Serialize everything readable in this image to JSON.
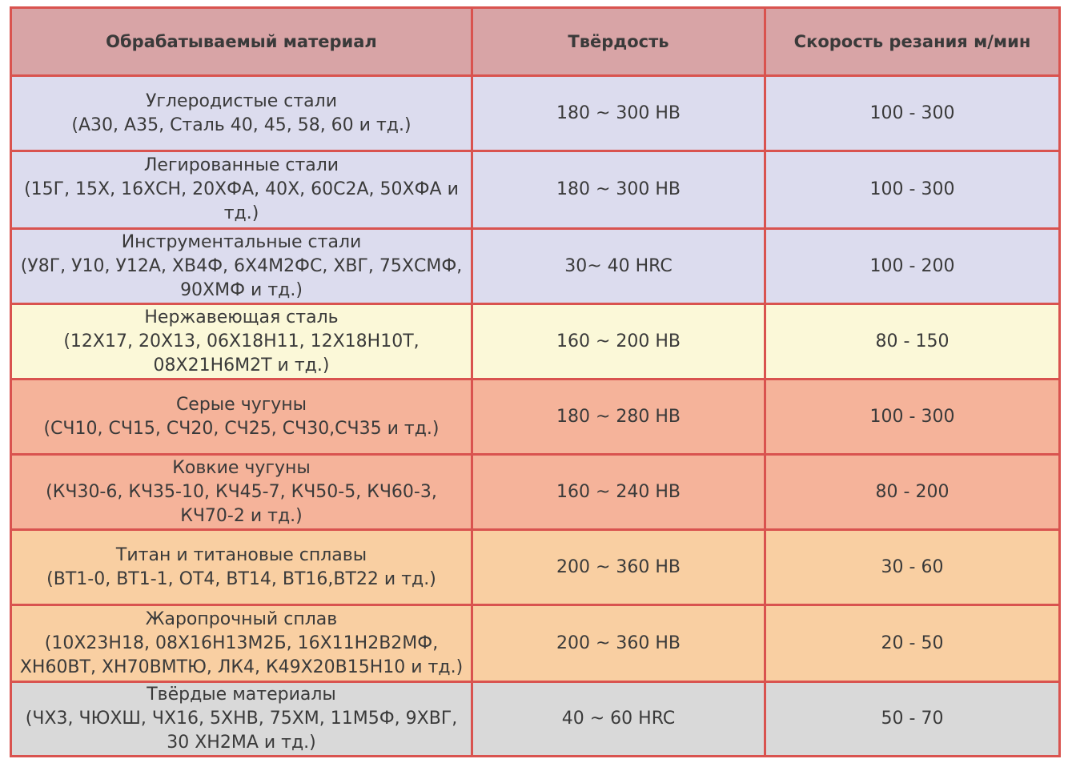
{
  "table": {
    "headers": [
      "Обрабатываемый материал",
      "Твёрдость",
      "Скорость резания м/мин"
    ],
    "rows": [
      {
        "name": "Углеродистые стали",
        "grades": "(А30, А35, Сталь 40, 45, 58, 60 и тд.)",
        "hardness": "180 ~ 300 HB",
        "speed": "100 - 300",
        "color": "#dcdcee"
      },
      {
        "name": "Легированные стали",
        "grades": "(15Г, 15Х, 16ХСН, 20ХФА, 40Х, 60С2А, 50ХФА и тд.)",
        "hardness": "180 ~ 300 HB",
        "speed": "100 - 300",
        "color": "#dcdcee"
      },
      {
        "name": "Инструментальные стали",
        "grades": "(У8Г, У10, У12А, ХВ4Ф, 6Х4М2ФС, ХВГ, 75ХСМФ, 90ХМФ и тд.)",
        "hardness": "30~ 40 HRC",
        "speed": "100 - 200",
        "color": "#dcdcee"
      },
      {
        "name": "Нержавеющая сталь",
        "grades": "(12Х17, 20Х13, 06Х18Н11, 12Х18Н10Т, 08Х21Н6М2Т и тд.)",
        "hardness": "160 ~ 200 HB",
        "speed": "80 - 150",
        "color": "#fbf8d8"
      },
      {
        "name": "Серые чугуны",
        "grades": "(СЧ10, СЧ15, СЧ20, СЧ25, СЧ30,СЧ35 и тд.)",
        "hardness": "180 ~ 280 HB",
        "speed": "100 - 300",
        "color": "#f5b39a"
      },
      {
        "name": "Ковкие чугуны",
        "grades": "(КЧ30-6, КЧ35-10, КЧ45-7, КЧ50-5, КЧ60-3, КЧ70-2 и тд.)",
        "hardness": "160 ~ 240 HB",
        "speed": "80 - 200",
        "color": "#f5b39a"
      },
      {
        "name": "Титан и титановые сплавы",
        "grades": "(ВТ1-0, ВТ1-1, ОТ4, ВТ14, ВТ16,ВТ22  и тд.)",
        "hardness": "200 ~ 360 HB",
        "speed": "30 - 60",
        "color": "#f9cfa2"
      },
      {
        "name": "Жаропрочный сплав",
        "grades": "(10Х23Н18, 08Х16Н13М2Б, 16Х11Н2В2МФ, ХН60ВТ, ХН70ВМТЮ, ЛК4, К49Х20В15Н10 и тд.)",
        "hardness": "200 ~ 360 HB",
        "speed": "20 - 50",
        "color": "#f9cfa2"
      },
      {
        "name": "Твёрдые материалы",
        "grades": "(ЧХ3, ЧЮХШ, ЧХ16, 5ХНВ, 75ХМ, 11М5Ф, 9ХВГ, 30 ХН2МА  и тд.)",
        "hardness": "40 ~ 60 HRC",
        "speed": "50 - 70",
        "color": "#d9d9d9"
      }
    ]
  }
}
